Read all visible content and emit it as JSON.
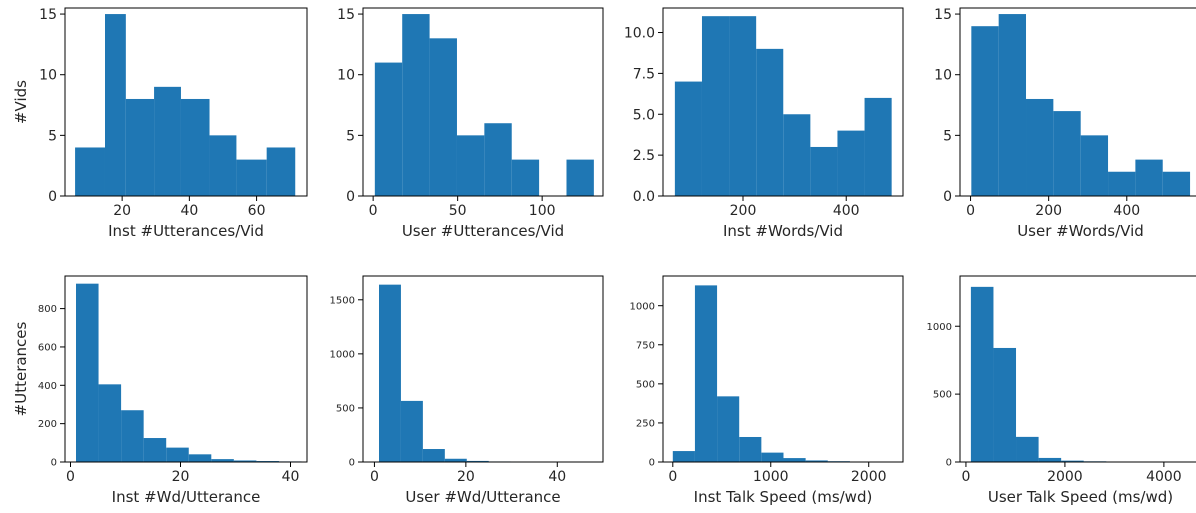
{
  "chart_data": [
    {
      "type": "bar",
      "panel": "row1-col1",
      "xlabel": "Inst #Utterances/Vid",
      "ylabel": "#Vids",
      "xlim": [
        3,
        75
      ],
      "ylim": [
        0,
        15.5
      ],
      "xticks": [
        20,
        40,
        60
      ],
      "yticks": [
        0,
        5,
        10,
        15
      ],
      "xtick_labels": [
        "20",
        "40",
        "60"
      ],
      "ytick_labels": [
        "0",
        "5",
        "10",
        "15"
      ],
      "bin_edges": [
        6,
        14.9,
        21.1,
        29.5,
        37.5,
        46,
        54,
        63,
        71.5
      ],
      "values": [
        4,
        15,
        8,
        9,
        8,
        5,
        3,
        4
      ],
      "color": "#1f77b4"
    },
    {
      "type": "bar",
      "panel": "row1-col2",
      "xlabel": "User #Utterances/Vid",
      "ylabel": "",
      "xlim": [
        -6,
        136
      ],
      "ylim": [
        0,
        15.5
      ],
      "xticks": [
        0,
        50,
        100
      ],
      "yticks": [
        0,
        5,
        10,
        15
      ],
      "xtick_labels": [
        "0",
        "50",
        "100"
      ],
      "ytick_labels": [
        "0",
        "5",
        "10",
        "15"
      ],
      "bin_edges": [
        1,
        17.2,
        33.4,
        49.6,
        65.8,
        82,
        98.2,
        114.4,
        130.6
      ],
      "values": [
        11,
        15,
        13,
        5,
        6,
        3,
        0,
        3
      ],
      "color": "#1f77b4"
    },
    {
      "type": "bar",
      "panel": "row1-col3",
      "xlabel": "Inst #Words/Vid",
      "ylabel": "",
      "xlim": [
        45,
        510
      ],
      "ylim": [
        0,
        11.5
      ],
      "xticks": [
        200,
        400
      ],
      "yticks": [
        0,
        2.5,
        5.0,
        7.5,
        10.0
      ],
      "xtick_labels": [
        "200",
        "400"
      ],
      "ytick_labels": [
        "0.0",
        "2.5",
        "5.0",
        "7.5",
        "10.0"
      ],
      "bin_edges": [
        68,
        120.5,
        173,
        225.5,
        278,
        330.5,
        383,
        435.5,
        488
      ],
      "values": [
        7,
        11,
        11,
        9,
        5,
        3,
        4,
        6
      ],
      "color": "#1f77b4"
    },
    {
      "type": "bar",
      "panel": "row1-col4",
      "xlabel": "User #Words/Vid",
      "ylabel": "",
      "xlim": [
        -27,
        590
      ],
      "ylim": [
        0,
        15.5
      ],
      "xticks": [
        0,
        200,
        400
      ],
      "yticks": [
        0,
        5,
        10,
        15
      ],
      "xtick_labels": [
        "0",
        "200",
        "400"
      ],
      "ytick_labels": [
        "0",
        "5",
        "10",
        "15"
      ],
      "bin_edges": [
        2,
        72,
        142,
        212,
        282,
        352,
        422,
        492,
        562
      ],
      "values": [
        14,
        15,
        8,
        7,
        5,
        2,
        3,
        2
      ],
      "color": "#1f77b4"
    },
    {
      "type": "bar",
      "panel": "row2-col1",
      "xlabel": "Inst #Wd/Utterance",
      "ylabel": "#Utterances",
      "xlim": [
        -1,
        43
      ],
      "ylim": [
        0,
        970
      ],
      "xticks": [
        0,
        20,
        40
      ],
      "yticks": [
        0,
        200,
        400,
        600,
        800
      ],
      "xtick_labels": [
        "0",
        "20",
        "40"
      ],
      "ytick_labels": [
        "0",
        "200",
        "400",
        "600",
        "800"
      ],
      "bin_edges": [
        1,
        5.1,
        9.2,
        13.3,
        17.4,
        21.5,
        25.6,
        29.7,
        33.8,
        37.9,
        42
      ],
      "values": [
        930,
        405,
        270,
        125,
        75,
        40,
        15,
        8,
        5,
        3
      ],
      "color": "#1f77b4"
    },
    {
      "type": "bar",
      "panel": "row2-col2",
      "xlabel": "User #Wd/Utterance",
      "ylabel": "",
      "xlim": [
        -2.5,
        50
      ],
      "ylim": [
        0,
        1720
      ],
      "xticks": [
        0,
        20,
        40
      ],
      "yticks": [
        0,
        500,
        1000,
        1500
      ],
      "xtick_labels": [
        "0",
        "20",
        "40"
      ],
      "ytick_labels": [
        "0",
        "500",
        "1000",
        "1500"
      ],
      "bin_edges": [
        1,
        5.8,
        10.6,
        15.4,
        20.2,
        25,
        29.8,
        34.6,
        39.4,
        44.2,
        49
      ],
      "values": [
        1640,
        565,
        120,
        30,
        10,
        5,
        3,
        2,
        1,
        1
      ],
      "color": "#1f77b4"
    },
    {
      "type": "bar",
      "panel": "row2-col3",
      "xlabel": "Inst Talk Speed (ms/wd)",
      "ylabel": "",
      "xlim": [
        -100,
        2350
      ],
      "ylim": [
        0,
        1190
      ],
      "xticks": [
        0,
        1000,
        2000
      ],
      "yticks": [
        0,
        250,
        500,
        750,
        1000
      ],
      "xtick_labels": [
        "0",
        "1000",
        "2000"
      ],
      "ytick_labels": [
        "0",
        "250",
        "500",
        "750",
        "1000"
      ],
      "bin_edges": [
        0,
        226,
        452,
        678,
        904,
        1130,
        1356,
        1582,
        1808,
        2034,
        2260
      ],
      "values": [
        70,
        1130,
        420,
        160,
        60,
        25,
        10,
        5,
        3,
        2
      ],
      "color": "#1f77b4"
    },
    {
      "type": "bar",
      "panel": "row2-col4",
      "xlabel": "User Talk Speed (ms/wd)",
      "ylabel": "",
      "xlim": [
        -120,
        4750
      ],
      "ylim": [
        0,
        1370
      ],
      "xticks": [
        0,
        2000,
        4000
      ],
      "yticks": [
        0,
        500,
        1000
      ],
      "xtick_labels": [
        "0",
        "2000",
        "4000"
      ],
      "ytick_labels": [
        "0",
        "500",
        "1000"
      ],
      "bin_edges": [
        100,
        556,
        1012,
        1468,
        1924,
        2380,
        2836,
        3292,
        3748,
        4204,
        4660
      ],
      "values": [
        1290,
        840,
        185,
        30,
        10,
        5,
        3,
        2,
        1,
        1
      ],
      "color": "#1f77b4"
    }
  ]
}
